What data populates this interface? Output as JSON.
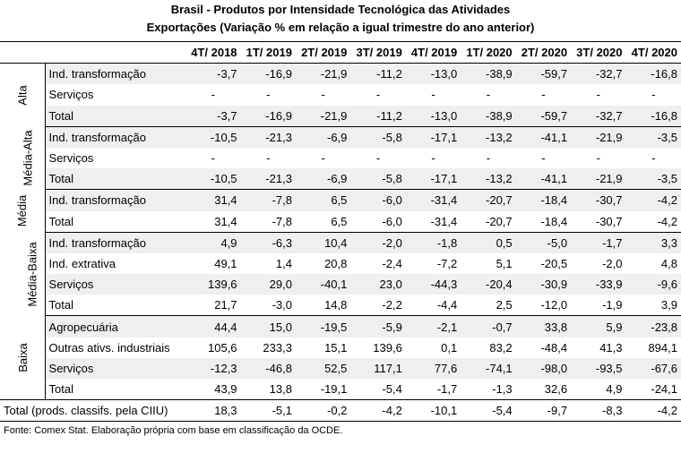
{
  "title_line1": "Brasil - Produtos por Intensidade Tecnológica das Atividades",
  "title_line2": "Exportações (Variação % em relação a igual trimestre do ano anterior)",
  "columns": [
    "4T/ 2018",
    "1T/ 2019",
    "2T/ 2019",
    "3T/ 2019",
    "4T/ 2019",
    "1T/ 2020",
    "2T/ 2020",
    "3T/ 2020",
    "4T/ 2020"
  ],
  "groups": [
    {
      "name": "Alta",
      "rows": [
        {
          "label": "Ind. transformação",
          "values": [
            "-3,7",
            "-16,9",
            "-21,9",
            "-11,2",
            "-13,0",
            "-38,9",
            "-59,7",
            "-32,7",
            "-16,8"
          ]
        },
        {
          "label": "Serviços",
          "values": [
            "-",
            "-",
            "-",
            "-",
            "-",
            "-",
            "-",
            "-",
            "-"
          ]
        },
        {
          "label": "Total",
          "values": [
            "-3,7",
            "-16,9",
            "-21,9",
            "-11,2",
            "-13,0",
            "-38,9",
            "-59,7",
            "-32,7",
            "-16,8"
          ]
        }
      ]
    },
    {
      "name": "Média-Alta",
      "rows": [
        {
          "label": "Ind. transformação",
          "values": [
            "-10,5",
            "-21,3",
            "-6,9",
            "-5,8",
            "-17,1",
            "-13,2",
            "-41,1",
            "-21,9",
            "-3,5"
          ]
        },
        {
          "label": "Serviços",
          "values": [
            "-",
            "-",
            "-",
            "-",
            "-",
            "-",
            "-",
            "-",
            "-"
          ]
        },
        {
          "label": "Total",
          "values": [
            "-10,5",
            "-21,3",
            "-6,9",
            "-5,8",
            "-17,1",
            "-13,2",
            "-41,1",
            "-21,9",
            "-3,5"
          ]
        }
      ]
    },
    {
      "name": "Média",
      "rows": [
        {
          "label": "Ind. transformação",
          "values": [
            "31,4",
            "-7,8",
            "6,5",
            "-6,0",
            "-31,4",
            "-20,7",
            "-18,4",
            "-30,7",
            "-4,2"
          ]
        },
        {
          "label": "Total",
          "values": [
            "31,4",
            "-7,8",
            "6,5",
            "-6,0",
            "-31,4",
            "-20,7",
            "-18,4",
            "-30,7",
            "-4,2"
          ]
        }
      ]
    },
    {
      "name": "Média-Baixa",
      "rows": [
        {
          "label": "Ind. transformação",
          "values": [
            "4,9",
            "-6,3",
            "10,4",
            "-2,0",
            "-1,8",
            "0,5",
            "-5,0",
            "-1,7",
            "3,3"
          ]
        },
        {
          "label": "Ind. extrativa",
          "values": [
            "49,1",
            "1,4",
            "20,8",
            "-2,4",
            "-7,2",
            "5,1",
            "-20,5",
            "-2,0",
            "4,8"
          ]
        },
        {
          "label": "Serviços",
          "values": [
            "139,6",
            "29,0",
            "-40,1",
            "23,0",
            "-44,3",
            "-20,4",
            "-30,9",
            "-33,9",
            "-9,6"
          ]
        },
        {
          "label": "Total",
          "values": [
            "21,7",
            "-3,0",
            "14,8",
            "-2,2",
            "-4,4",
            "2,5",
            "-12,0",
            "-1,9",
            "3,9"
          ]
        }
      ]
    },
    {
      "name": "Baixa",
      "rows": [
        {
          "label": "Agropecuária",
          "values": [
            "44,4",
            "15,0",
            "-19,5",
            "-5,9",
            "-2,1",
            "-0,7",
            "33,8",
            "5,9",
            "-23,8"
          ]
        },
        {
          "label": "Outras ativs. industriais",
          "values": [
            "105,6",
            "233,3",
            "15,1",
            "139,6",
            "0,1",
            "83,2",
            "-48,4",
            "41,3",
            "894,1"
          ]
        },
        {
          "label": "Serviços",
          "values": [
            "-12,3",
            "-46,8",
            "52,5",
            "117,1",
            "77,6",
            "-74,1",
            "-98,0",
            "-93,5",
            "-67,6"
          ]
        },
        {
          "label": "Total",
          "values": [
            "43,9",
            "13,8",
            "-19,1",
            "-5,4",
            "-1,7",
            "-1,3",
            "32,6",
            "4,9",
            "-24,1"
          ]
        }
      ]
    }
  ],
  "grand_total": {
    "label": "Total (prods. classifs. pela CIIU)",
    "values": [
      "18,3",
      "-5,1",
      "-0,2",
      "-4,2",
      "-10,1",
      "-5,4",
      "-9,7",
      "-8,3",
      "-4,2"
    ]
  },
  "source": "Fonte: Comex Stat. Elaboração própria com base em classificação da OCDE."
}
